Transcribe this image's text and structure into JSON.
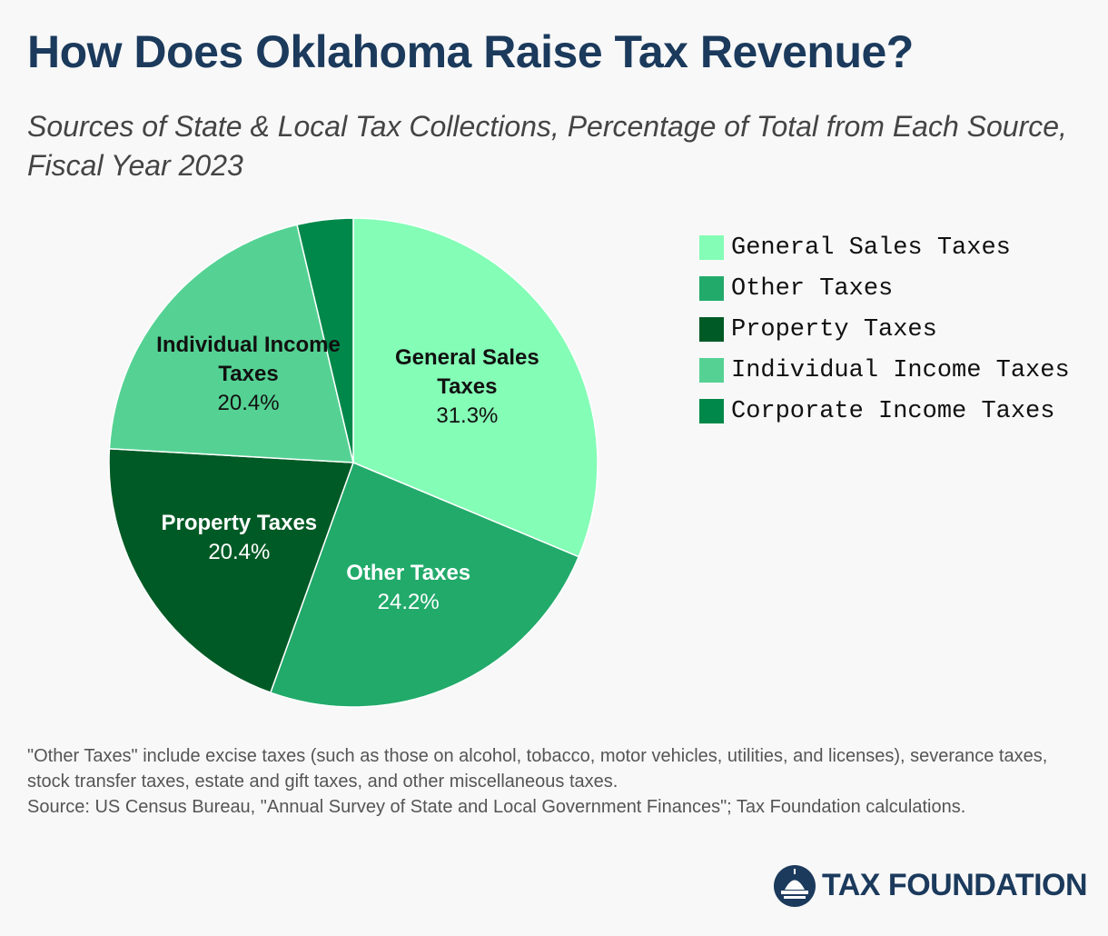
{
  "chart_data": {
    "type": "pie",
    "title": "How Does Oklahoma Raise Tax Revenue?",
    "subtitle": "Sources of State & Local Tax Collections, Percentage of Total from Each Source, Fiscal Year 2023",
    "categories": [
      "General Sales Taxes",
      "Other Taxes",
      "Property Taxes",
      "Individual Income Taxes",
      "Corporate Income Taxes"
    ],
    "values": [
      31.3,
      24.2,
      20.4,
      20.4,
      3.7
    ],
    "value_labels": [
      "31.3%",
      "24.2%",
      "20.4%",
      "20.4%",
      null
    ],
    "colors": [
      "#84fdb6",
      "#22aa6a",
      "#005a25",
      "#55d293",
      "#00884a"
    ],
    "label_colors": [
      "#111111",
      "#ffffff",
      "#ffffff",
      "#111111",
      "#ffffff"
    ],
    "legend": "right"
  },
  "footer": {
    "note": "\"Other Taxes\" include excise taxes (such as those on alcohol, tobacco, motor vehicles, utilities, and licenses), severance taxes, stock transfer taxes, estate and gift taxes, and other miscellaneous taxes.",
    "source": "Source: US Census Bureau, \"Annual Survey of State and Local Government Finances\"; Tax Foundation calculations.",
    "brand": "TAX FOUNDATION"
  }
}
